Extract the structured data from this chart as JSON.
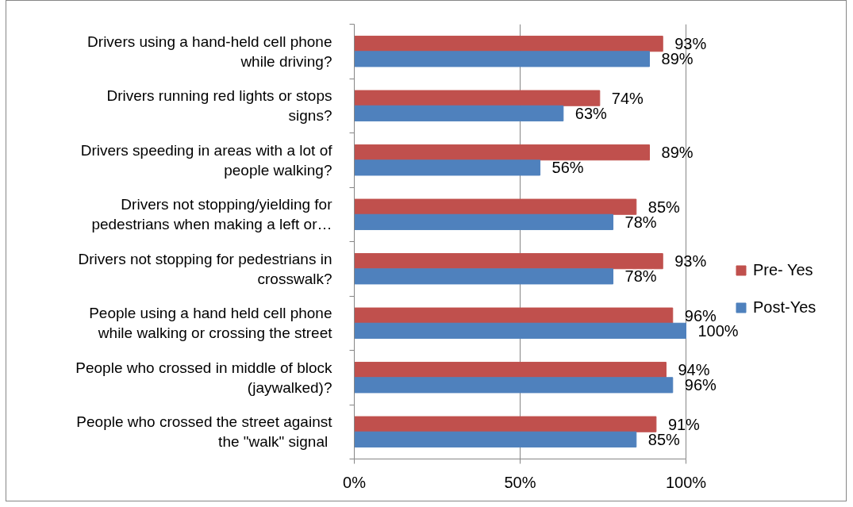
{
  "chart_data": {
    "type": "bar",
    "orientation": "horizontal",
    "categories": [
      "Drivers using a hand-held cell phone while driving?",
      "Drivers running red lights or stops signs?",
      "Drivers speeding in areas with a lot of people walking?",
      "Drivers not stopping/yielding for pedestrians when making a left or…",
      "Drivers not stopping for pedestrians in crosswalk?",
      "People using a hand held cell phone while walking or crossing the street",
      "People who crossed in middle of block (jaywalked)?",
      "People who crossed the street against the  \"walk\" signal"
    ],
    "series": [
      {
        "name": "Pre- Yes",
        "color": "#c0504d",
        "values": [
          93,
          74,
          89,
          85,
          93,
          96,
          94,
          91
        ],
        "value_labels": [
          "93%",
          "74%",
          "89%",
          "85%",
          "93%",
          "96%",
          "94%",
          "91%"
        ]
      },
      {
        "name": "Post-Yes",
        "color": "#4f81bd",
        "values": [
          89,
          63,
          56,
          78,
          78,
          100,
          96,
          85
        ],
        "value_labels": [
          "89%",
          "63%",
          "56%",
          "78%",
          "78%",
          "100%",
          "96%",
          "85%"
        ]
      }
    ],
    "xlim": [
      0,
      100
    ],
    "xticks": [
      {
        "value": 0,
        "label": "0%"
      },
      {
        "value": 50,
        "label": "50%"
      },
      {
        "value": 100,
        "label": "100%"
      }
    ],
    "grid": "x",
    "legend": "right"
  }
}
